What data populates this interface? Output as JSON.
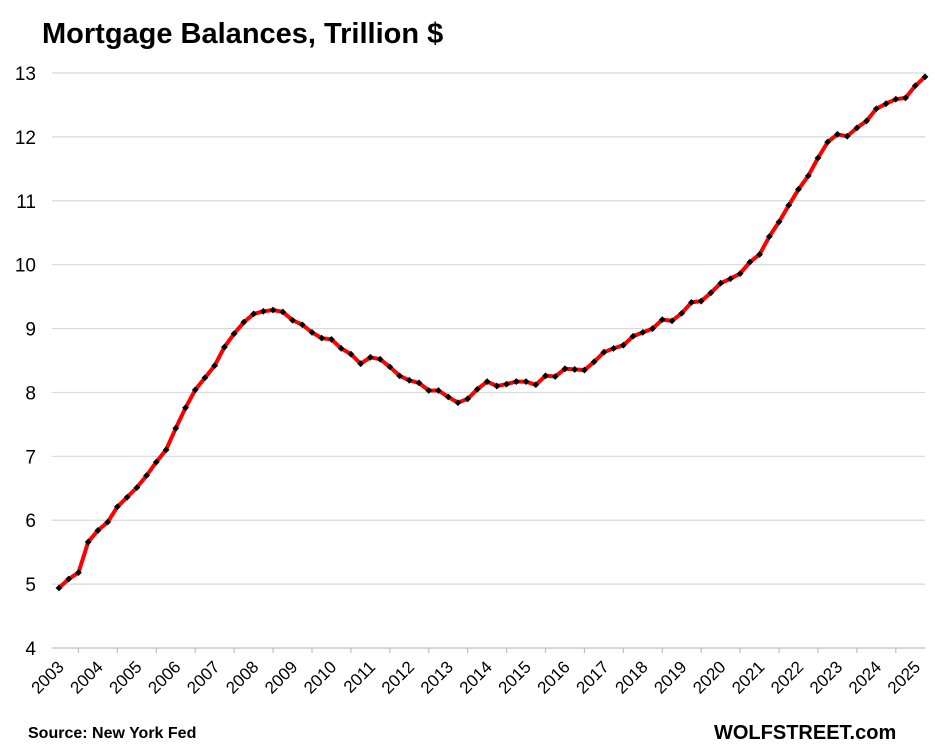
{
  "chart_data": {
    "type": "line",
    "title": "Mortgage Balances, Trillion $",
    "xlabel": "",
    "ylabel": "",
    "ylim": [
      4,
      13
    ],
    "y_ticks": [
      "4",
      "5",
      "6",
      "7",
      "8",
      "9",
      "10",
      "11",
      "12",
      "13"
    ],
    "x_ticks": [
      "2003",
      "2004",
      "2005",
      "2006",
      "2007",
      "2008",
      "2009",
      "2010",
      "2011",
      "2012",
      "2013",
      "2014",
      "2015",
      "2016",
      "2017",
      "2018",
      "2019",
      "2020",
      "2021",
      "2022",
      "2023",
      "2024",
      "2025"
    ],
    "grid": true,
    "legend": "none",
    "line_color": "#ff0000",
    "marker_color": "#000000",
    "series": [
      {
        "x": [
          "2003 Q1",
          "2003 Q2",
          "2003 Q3",
          "2003 Q4",
          "2004 Q1",
          "2004 Q2",
          "2004 Q3",
          "2004 Q4",
          "2005 Q1",
          "2005 Q2",
          "2005 Q3",
          "2005 Q4",
          "2006 Q1",
          "2006 Q2",
          "2006 Q3",
          "2006 Q4",
          "2007 Q1",
          "2007 Q2",
          "2007 Q3",
          "2007 Q4",
          "2008 Q1",
          "2008 Q2",
          "2008 Q3",
          "2008 Q4",
          "2009 Q1",
          "2009 Q2",
          "2009 Q3",
          "2009 Q4",
          "2010 Q1",
          "2010 Q2",
          "2010 Q3",
          "2010 Q4",
          "2011 Q1",
          "2011 Q2",
          "2011 Q3",
          "2011 Q4",
          "2012 Q1",
          "2012 Q2",
          "2012 Q3",
          "2012 Q4",
          "2013 Q1",
          "2013 Q2",
          "2013 Q3",
          "2013 Q4",
          "2014 Q1",
          "2014 Q2",
          "2014 Q3",
          "2014 Q4",
          "2015 Q1",
          "2015 Q2",
          "2015 Q3",
          "2015 Q4",
          "2016 Q1",
          "2016 Q2",
          "2016 Q3",
          "2016 Q4",
          "2017 Q1",
          "2017 Q2",
          "2017 Q3",
          "2017 Q4",
          "2018 Q1",
          "2018 Q2",
          "2018 Q3",
          "2018 Q4",
          "2019 Q1",
          "2019 Q2",
          "2019 Q3",
          "2019 Q4",
          "2020 Q1",
          "2020 Q2",
          "2020 Q3",
          "2020 Q4",
          "2021 Q1",
          "2021 Q2",
          "2021 Q3",
          "2021 Q4",
          "2022 Q1",
          "2022 Q2",
          "2022 Q3",
          "2022 Q4",
          "2023 Q1",
          "2023 Q2",
          "2023 Q3",
          "2023 Q4",
          "2024 Q1",
          "2024 Q2",
          "2024 Q3",
          "2024 Q4",
          "2025 Q1",
          "2025 Q2"
        ],
        "values": [
          4.94,
          5.08,
          5.18,
          5.66,
          5.84,
          5.97,
          6.21,
          6.36,
          6.51,
          6.7,
          6.91,
          7.1,
          7.44,
          7.76,
          8.04,
          8.23,
          8.42,
          8.71,
          8.92,
          9.1,
          9.23,
          9.27,
          9.29,
          9.26,
          9.13,
          9.06,
          8.94,
          8.85,
          8.83,
          8.69,
          8.6,
          8.45,
          8.55,
          8.52,
          8.4,
          8.26,
          8.19,
          8.15,
          8.03,
          8.03,
          7.93,
          7.84,
          7.9,
          8.05,
          8.17,
          8.1,
          8.13,
          8.17,
          8.17,
          8.12,
          8.26,
          8.25,
          8.37,
          8.36,
          8.35,
          8.48,
          8.63,
          8.69,
          8.74,
          8.88,
          8.94,
          9.0,
          9.14,
          9.12,
          9.24,
          9.41,
          9.43,
          9.56,
          9.71,
          9.78,
          9.86,
          10.04,
          10.16,
          10.44,
          10.67,
          10.93,
          11.18,
          11.39,
          11.67,
          11.92,
          12.04,
          12.01,
          12.14,
          12.25,
          12.44,
          12.52,
          12.59,
          12.61,
          12.8,
          12.94
        ]
      }
    ]
  },
  "footer": {
    "source": "Source: New York Fed",
    "brand": "WOLFSTREET.com"
  }
}
